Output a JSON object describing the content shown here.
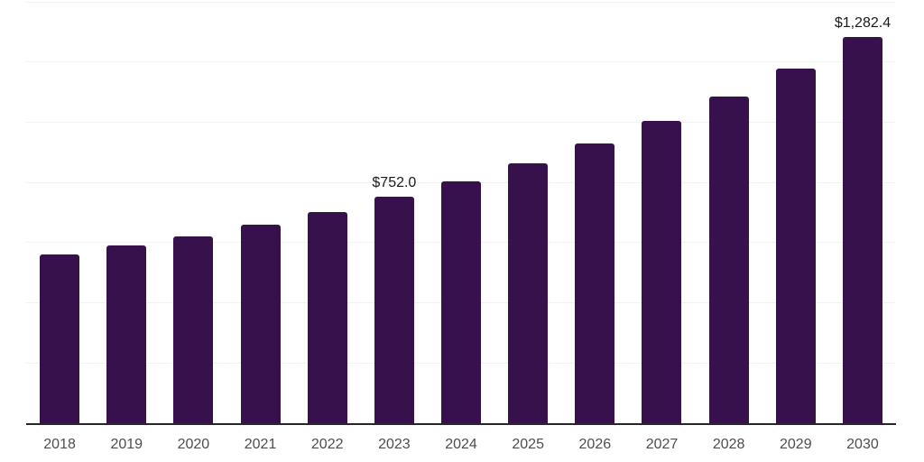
{
  "chart": {
    "background": "#FFFFFF",
    "colors": {
      "bar": "#36114B",
      "grid": "#F2F2F2",
      "axis": "#262626",
      "tick_label": "#4D4D4D",
      "data_label": "#1A1A1A"
    }
  },
  "chart_data": {
    "type": "bar",
    "title": "",
    "xlabel": "",
    "ylabel": "",
    "categories": [
      "2018",
      "2019",
      "2020",
      "2021",
      "2022",
      "2023",
      "2024",
      "2025",
      "2026",
      "2027",
      "2028",
      "2029",
      "2030"
    ],
    "values": [
      560,
      590,
      622,
      660,
      702,
      752.0,
      804,
      864,
      929,
      1004,
      1085,
      1178,
      1282.4
    ],
    "ylim": [
      0,
      1400
    ],
    "gridline_step": 200,
    "grid": true,
    "legend": false,
    "y_axis_labels_shown": false,
    "data_labels": [
      {
        "category": "2023",
        "text": "$752.0"
      },
      {
        "category": "2030",
        "text": "$1,282.4"
      }
    ]
  }
}
